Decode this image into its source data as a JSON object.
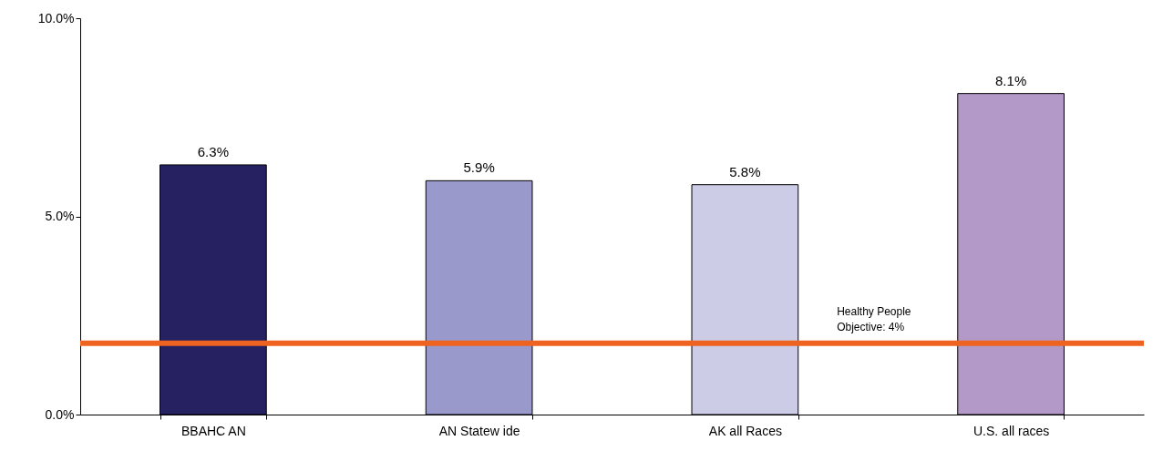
{
  "chart_data": {
    "type": "bar",
    "categories": [
      "BBAHC AN",
      "AN Statew ide",
      "AK all Races",
      "U.S. all races"
    ],
    "values": [
      6.3,
      5.9,
      5.8,
      8.1
    ],
    "colors": [
      "#262262",
      "#9999cc",
      "#ccccE6",
      "#b399c8"
    ],
    "value_labels": [
      "6.3%",
      "5.9%",
      "5.8%",
      "8.1%"
    ],
    "ylim": [
      0,
      10
    ],
    "yticks": [
      {
        "value": 0,
        "label": "0.0%"
      },
      {
        "value": 5,
        "label": "5.0%"
      },
      {
        "value": 10,
        "label": "10.0%"
      }
    ],
    "ref_lines": [
      {
        "axis": "y",
        "value": 1.8,
        "color": "#ef6321"
      }
    ],
    "annotations": [
      "Healthy People\nObjective: 4%"
    ],
    "grid": false
  }
}
